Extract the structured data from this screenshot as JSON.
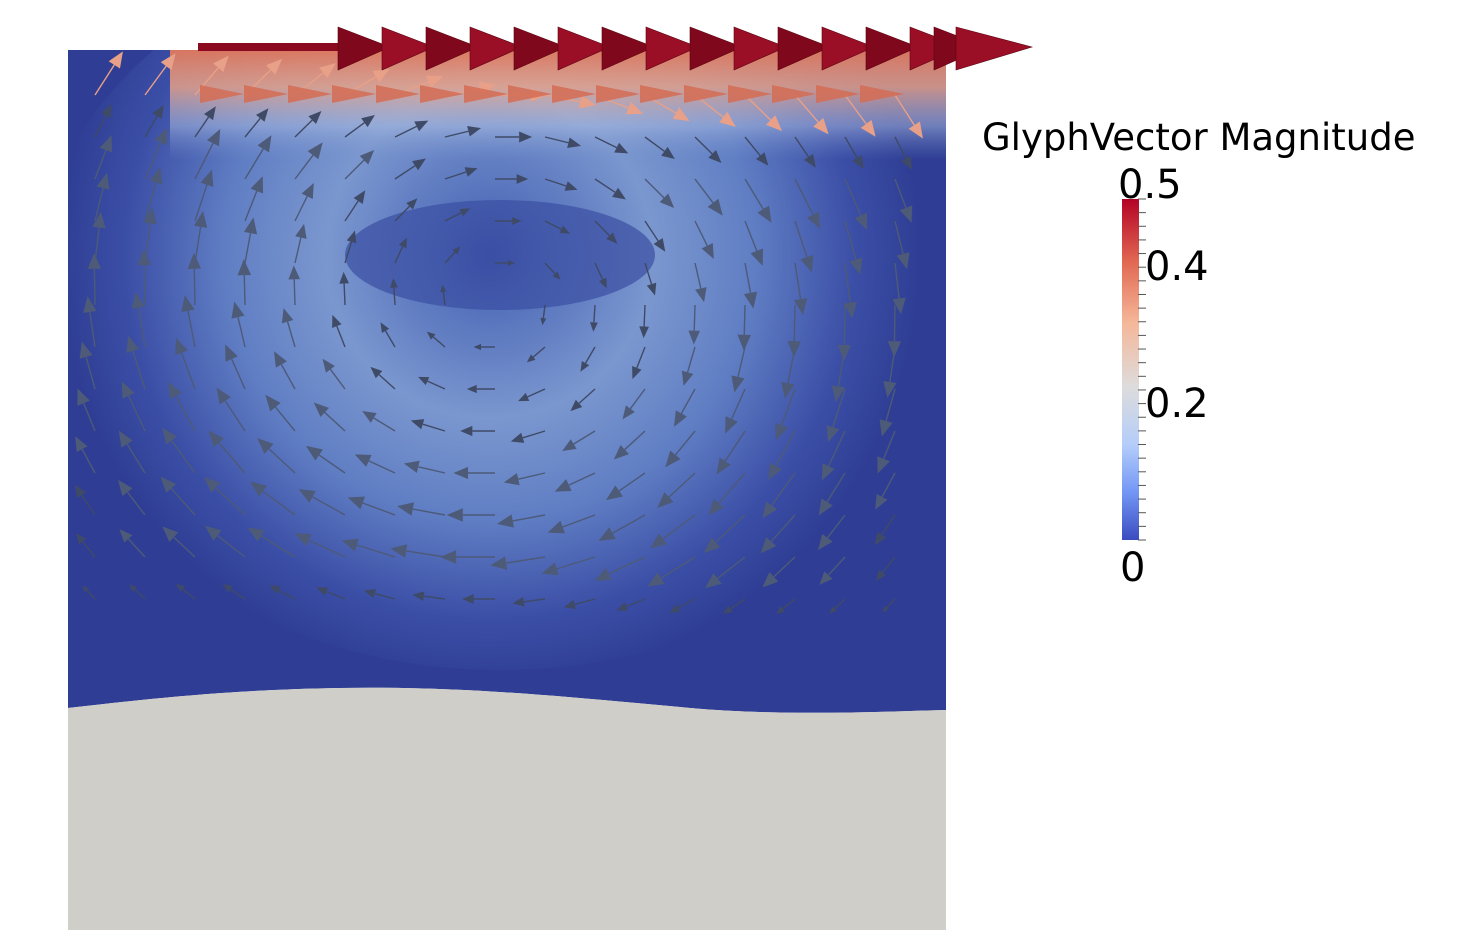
{
  "legend": {
    "title": "GlyphVector Magnitude",
    "ticks": [
      {
        "label": "0.5",
        "value": 0.5
      },
      {
        "label": "0.4",
        "value": 0.4
      },
      {
        "label": "0.2",
        "value": 0.2
      },
      {
        "label": "0",
        "value": 0
      }
    ],
    "range": [
      0,
      0.5
    ],
    "colormap": [
      "#3b4cc0",
      "#7396f5",
      "#b4cdfa",
      "#dddcdc",
      "#f5b799",
      "#e16752",
      "#b40426"
    ]
  },
  "colors": {
    "background": "#ffffff",
    "fluid_low": "#2f3e94",
    "fluid_mid": "#6f8cc8",
    "solid_region": "#d0cec8",
    "lid_vector": "#8b0a1f",
    "glyph": "#5a6a8a"
  }
}
